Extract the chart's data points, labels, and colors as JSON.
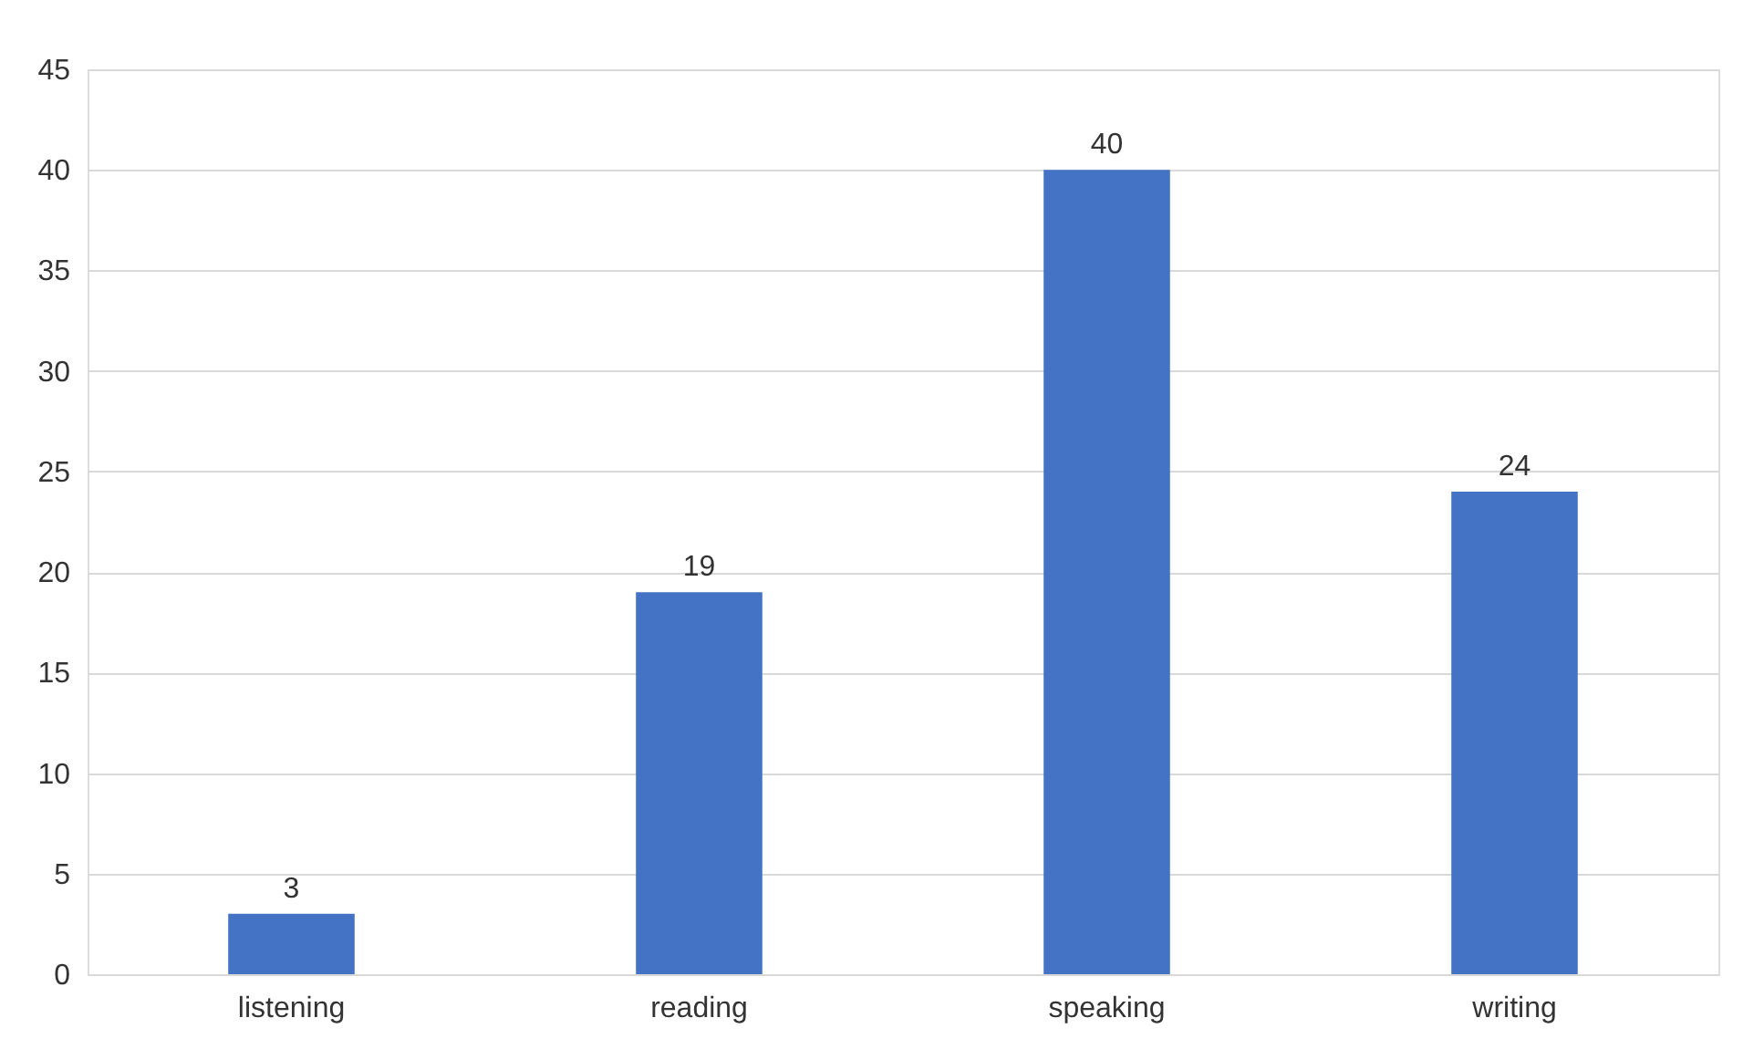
{
  "chart_data": {
    "type": "bar",
    "categories": [
      "listening",
      "reading",
      "speaking",
      "writing"
    ],
    "values": [
      3,
      19,
      40,
      24
    ],
    "color": "#4472c4",
    "ylim": [
      0,
      45
    ],
    "yticks": [
      0,
      5,
      10,
      15,
      20,
      25,
      30,
      35,
      40,
      45
    ],
    "grid": "y",
    "data_labels": true
  }
}
